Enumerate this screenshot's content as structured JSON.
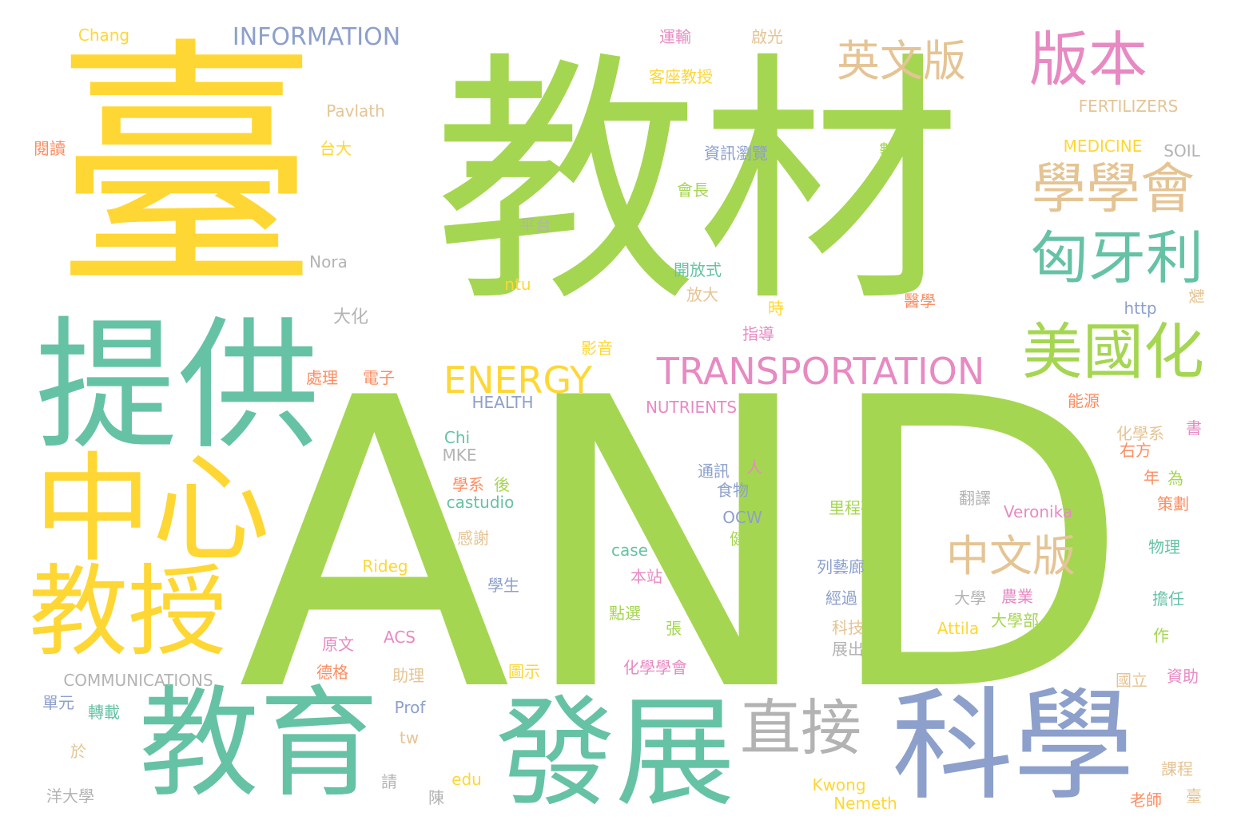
{
  "colors": {
    "background": "#ffffff",
    "palette": [
      "#a5d651",
      "#fed734",
      "#66c2a5",
      "#8da0cb",
      "#e78ac3",
      "#e5c494",
      "#fc8d62",
      "#b3b3b3"
    ]
  },
  "words": [
    {
      "text": "AND",
      "color": "#a5d651"
    },
    {
      "text": "教材",
      "color": "#a5d651"
    },
    {
      "text": "臺",
      "color": "#fed734"
    },
    {
      "text": "提供",
      "color": "#66c2a5"
    },
    {
      "text": "中心",
      "color": "#fed734"
    },
    {
      "text": "教授",
      "color": "#fed734"
    },
    {
      "text": "教育",
      "color": "#66c2a5"
    },
    {
      "text": "發展",
      "color": "#66c2a5"
    },
    {
      "text": "科學",
      "color": "#8da0cb"
    },
    {
      "text": "直接",
      "color": "#b3b3b3"
    },
    {
      "text": "版本",
      "color": "#e78ac3"
    },
    {
      "text": "英文版",
      "color": "#e5c494"
    },
    {
      "text": "學學會",
      "color": "#e5c494"
    },
    {
      "text": "匈牙利",
      "color": "#66c2a5"
    },
    {
      "text": "美國化",
      "color": "#a5d651"
    },
    {
      "text": "中文版",
      "color": "#e5c494"
    },
    {
      "text": "TRANSPORTATION",
      "color": "#e78ac3"
    },
    {
      "text": "ENERGY",
      "color": "#fed734"
    },
    {
      "text": "INFORMATION",
      "color": "#8da0cb"
    },
    {
      "text": "Chang",
      "color": "#fed734"
    },
    {
      "text": "Pavlath",
      "color": "#e5c494"
    },
    {
      "text": "閱讀",
      "color": "#fc8d62"
    },
    {
      "text": "台大",
      "color": "#fed734"
    },
    {
      "text": "Nora",
      "color": "#b3b3b3"
    },
    {
      "text": "大化",
      "color": "#b3b3b3"
    },
    {
      "text": "處理",
      "color": "#fc8d62"
    },
    {
      "text": "電子",
      "color": "#fc8d62"
    },
    {
      "text": "運輸",
      "color": "#e78ac3"
    },
    {
      "text": "啟光",
      "color": "#e5c494"
    },
    {
      "text": "客座教授",
      "color": "#fed734"
    },
    {
      "text": "資訊瀏覽",
      "color": "#8da0cb"
    },
    {
      "text": "數位",
      "color": "#a5d651"
    },
    {
      "text": "會長",
      "color": "#a5d651"
    },
    {
      "text": "平台",
      "color": "#b3b3b3"
    },
    {
      "text": "開放式",
      "color": "#66c2a5"
    },
    {
      "text": "放大",
      "color": "#e5c494"
    },
    {
      "text": "ntu",
      "color": "#fed734"
    },
    {
      "text": "時",
      "color": "#fed734"
    },
    {
      "text": "指導",
      "color": "#e78ac3"
    },
    {
      "text": "醫學",
      "color": "#fc8d62"
    },
    {
      "text": "影音",
      "color": "#fed734"
    },
    {
      "text": "FERTILIZERS",
      "color": "#e5c494"
    },
    {
      "text": "MEDICINE",
      "color": "#fed734"
    },
    {
      "text": "SOIL",
      "color": "#b3b3b3"
    },
    {
      "text": "http",
      "color": "#8da0cb"
    },
    {
      "text": "製",
      "color": "#e5c494"
    },
    {
      "text": "HEALTH",
      "color": "#8da0cb"
    },
    {
      "text": "NUTRIENTS",
      "color": "#e78ac3"
    },
    {
      "text": "能源",
      "color": "#fc8d62"
    },
    {
      "text": "化學系",
      "color": "#e5c494"
    },
    {
      "text": "書",
      "color": "#e78ac3"
    },
    {
      "text": "右方",
      "color": "#fc8d62"
    },
    {
      "text": "Chi",
      "color": "#66c2a5"
    },
    {
      "text": "MKE",
      "color": "#b3b3b3"
    },
    {
      "text": "學系",
      "color": "#fc8d62"
    },
    {
      "text": "後",
      "color": "#a5d651"
    },
    {
      "text": "castudio",
      "color": "#66c2a5"
    },
    {
      "text": "感謝",
      "color": "#e5c494"
    },
    {
      "text": "Rideg",
      "color": "#fed734"
    },
    {
      "text": "通訊",
      "color": "#8da0cb"
    },
    {
      "text": "人",
      "color": "#e78ac3"
    },
    {
      "text": "食物",
      "color": "#8da0cb"
    },
    {
      "text": "OCW",
      "color": "#8da0cb"
    },
    {
      "text": "健康",
      "color": "#a5d651"
    },
    {
      "text": "case",
      "color": "#66c2a5"
    },
    {
      "text": "本站",
      "color": "#e78ac3"
    },
    {
      "text": "學生",
      "color": "#8da0cb"
    },
    {
      "text": "點選",
      "color": "#a5d651"
    },
    {
      "text": "張",
      "color": "#a5d651"
    },
    {
      "text": "原文",
      "color": "#e78ac3"
    },
    {
      "text": "ACS",
      "color": "#e78ac3"
    },
    {
      "text": "德格",
      "color": "#fc8d62"
    },
    {
      "text": "助理",
      "color": "#e5c494"
    },
    {
      "text": "圖示",
      "color": "#fed734"
    },
    {
      "text": "化學學會",
      "color": "#e78ac3"
    },
    {
      "text": "COMMUNICATIONS",
      "color": "#b3b3b3"
    },
    {
      "text": "單元",
      "color": "#8da0cb"
    },
    {
      "text": "轉載",
      "color": "#66c2a5"
    },
    {
      "text": "Prof",
      "color": "#8da0cb"
    },
    {
      "text": "tw",
      "color": "#e5c494"
    },
    {
      "text": "於",
      "color": "#e5c494"
    },
    {
      "text": "請",
      "color": "#b3b3b3"
    },
    {
      "text": "洋大學",
      "color": "#b3b3b3"
    },
    {
      "text": "陳",
      "color": "#b3b3b3"
    },
    {
      "text": "edu",
      "color": "#fed734"
    },
    {
      "text": "里程碑",
      "color": "#a5d651"
    },
    {
      "text": "列藝廊",
      "color": "#8da0cb"
    },
    {
      "text": "經過",
      "color": "#8da0cb"
    },
    {
      "text": "科技",
      "color": "#e5c494"
    },
    {
      "text": "展出",
      "color": "#b3b3b3"
    },
    {
      "text": "Kwong",
      "color": "#fed734"
    },
    {
      "text": "Nemeth",
      "color": "#fed734"
    },
    {
      "text": "翻譯",
      "color": "#b3b3b3"
    },
    {
      "text": "Veronika",
      "color": "#e78ac3"
    },
    {
      "text": "大學",
      "color": "#b3b3b3"
    },
    {
      "text": "農業",
      "color": "#e78ac3"
    },
    {
      "text": "大學部",
      "color": "#a5d651"
    },
    {
      "text": "Attila",
      "color": "#fed734"
    },
    {
      "text": "年",
      "color": "#fc8d62"
    },
    {
      "text": "為",
      "color": "#a5d651"
    },
    {
      "text": "策劃",
      "color": "#fc8d62"
    },
    {
      "text": "物理",
      "color": "#66c2a5"
    },
    {
      "text": "擔任",
      "color": "#66c2a5"
    },
    {
      "text": "作",
      "color": "#a5d651"
    },
    {
      "text": "國立",
      "color": "#e5c494"
    },
    {
      "text": "資助",
      "color": "#e78ac3"
    },
    {
      "text": "課程",
      "color": "#e5c494"
    },
    {
      "text": "老師",
      "color": "#fc8d62"
    },
    {
      "text": "臺",
      "color": "#e5c494"
    }
  ]
}
